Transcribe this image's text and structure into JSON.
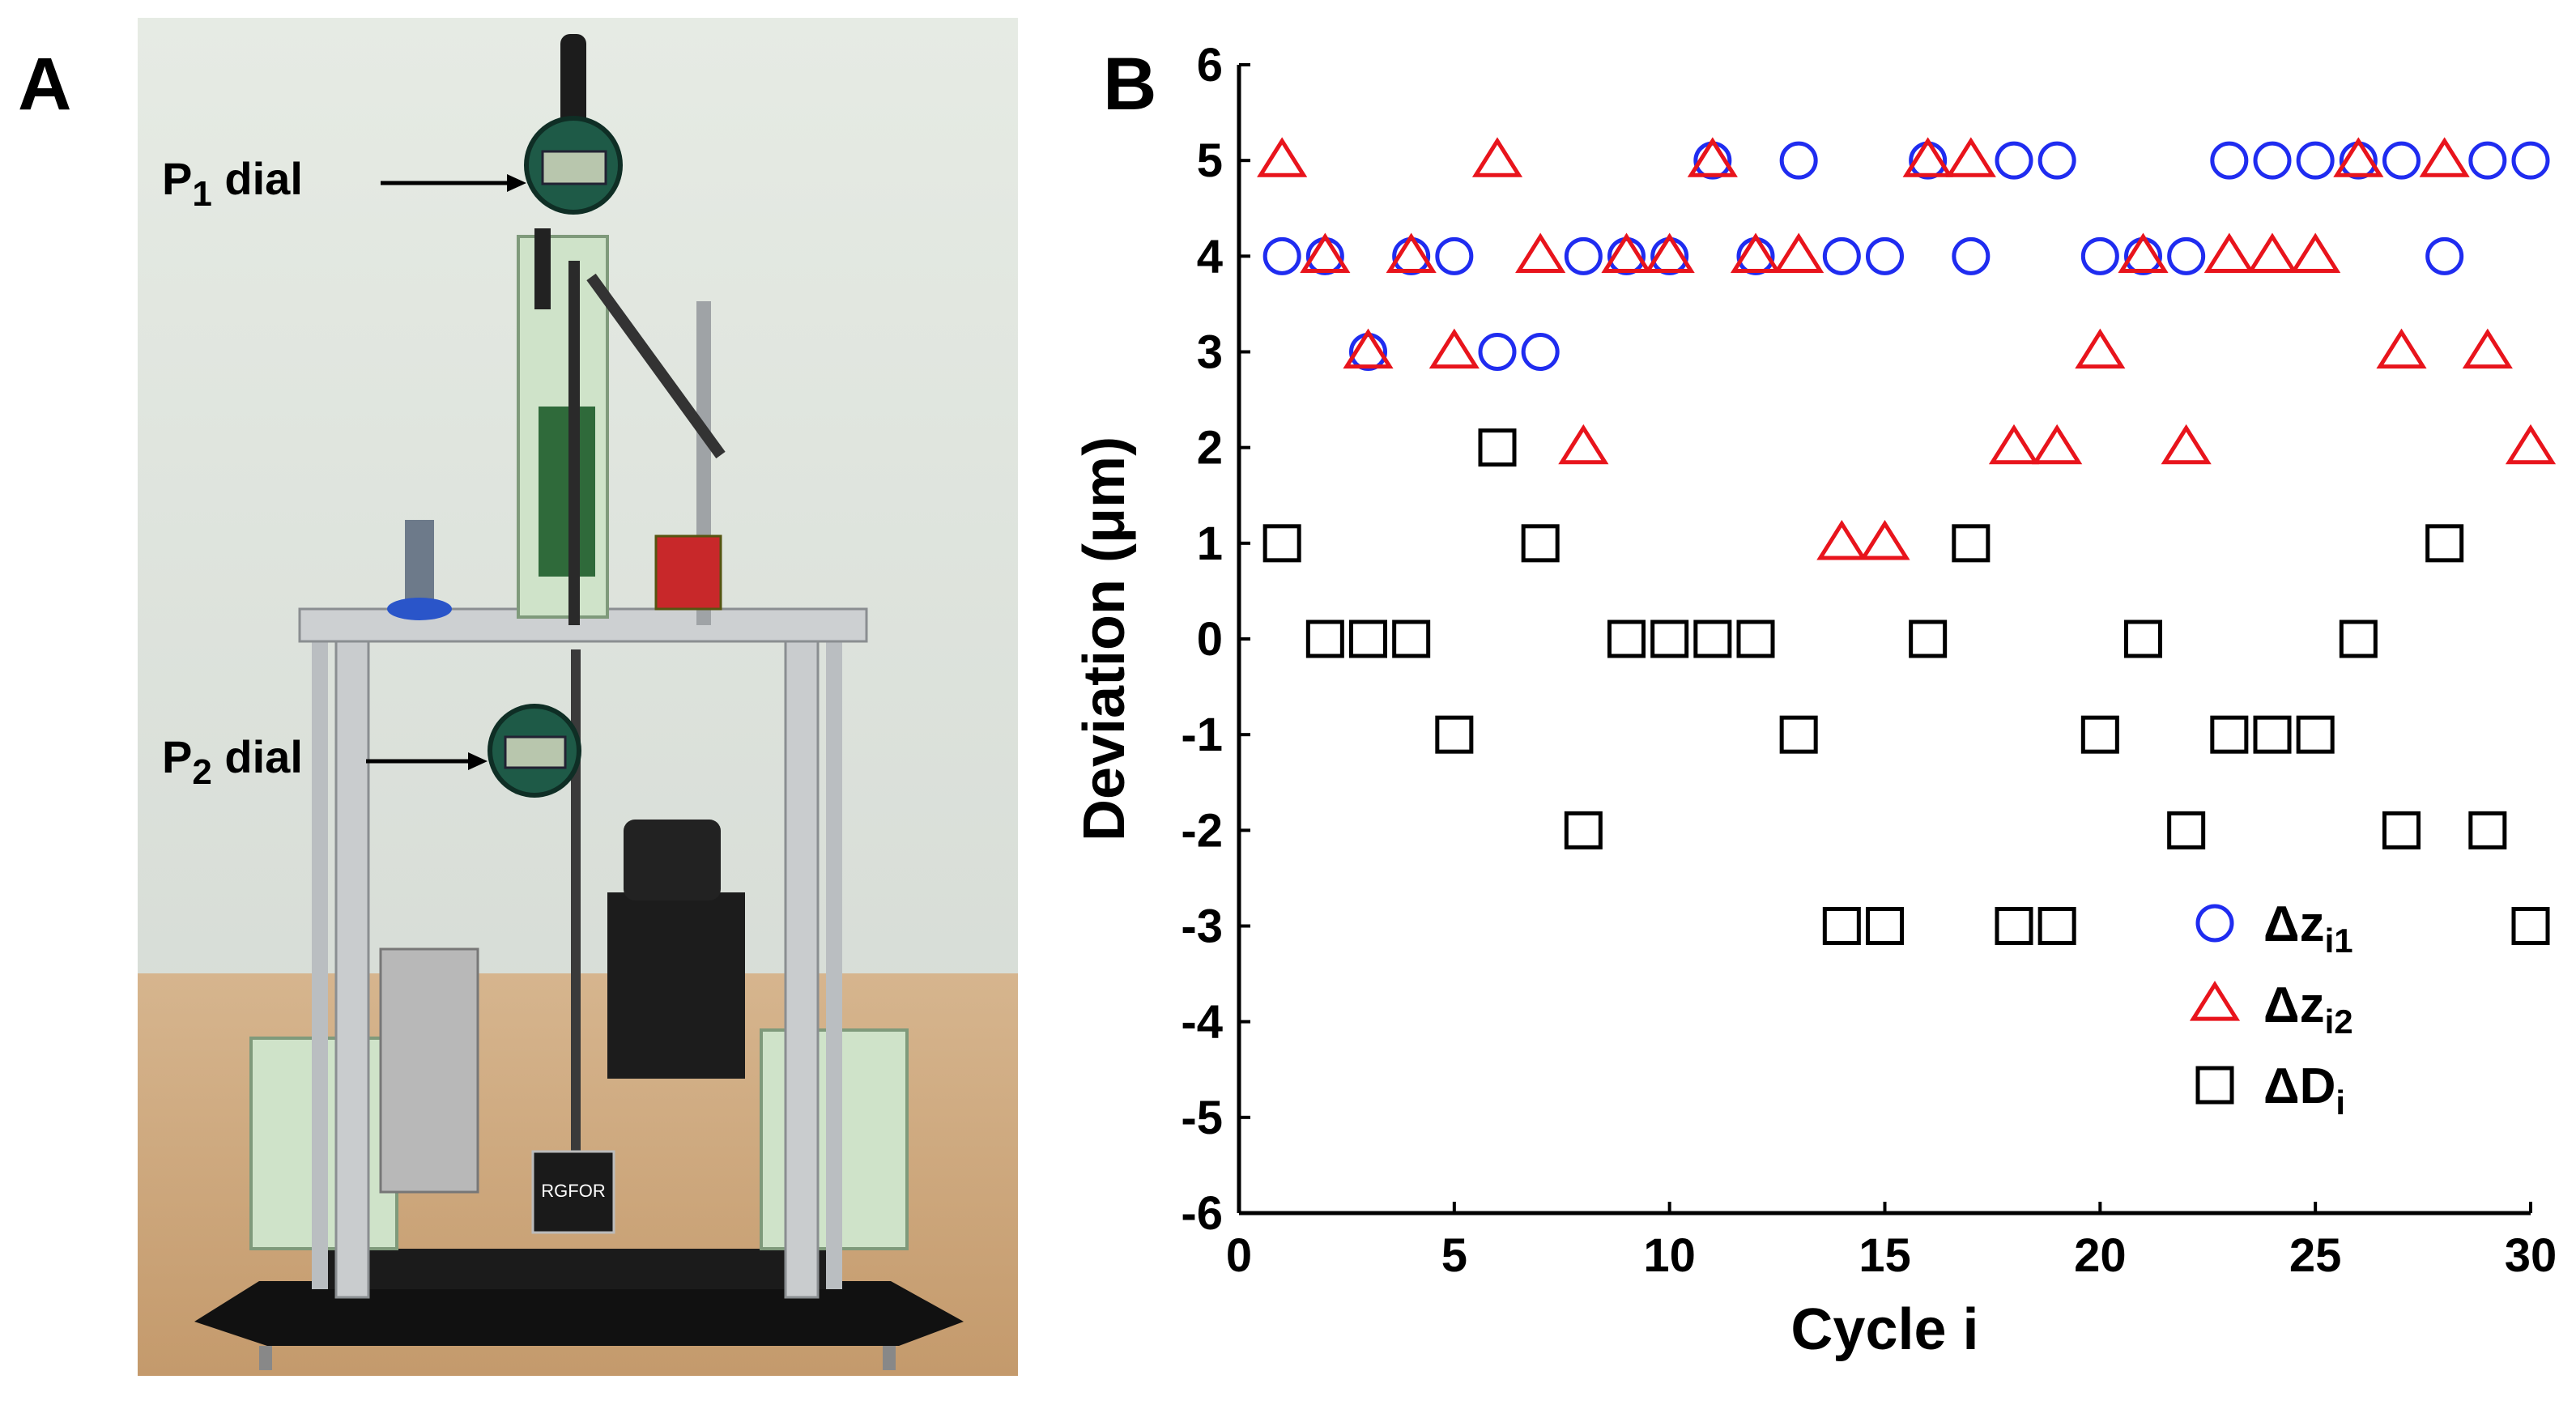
{
  "panels": {
    "a_label": "A",
    "b_label": "B"
  },
  "photo": {
    "p1_label_main": "P",
    "p1_label_sub": "1",
    "p1_label_rest": " dial",
    "p2_label_main": "P",
    "p2_label_sub": "2",
    "p2_label_rest": " dial",
    "mag_base_text": "RGFOR"
  },
  "chart_data": {
    "type": "scatter",
    "title": "",
    "xlabel": "Cycle i",
    "ylabel": "Deviation (μm)",
    "xlim": [
      0,
      30
    ],
    "ylim": [
      -6,
      6
    ],
    "xticks": [
      0,
      5,
      10,
      15,
      20,
      25,
      30
    ],
    "yticks": [
      -6,
      -5,
      -4,
      -3,
      -2,
      -1,
      0,
      1,
      2,
      3,
      4,
      5,
      6
    ],
    "grid": false,
    "legend_position": "bottom-right",
    "x": [
      1,
      2,
      3,
      4,
      5,
      6,
      7,
      8,
      9,
      10,
      11,
      12,
      13,
      14,
      15,
      16,
      17,
      18,
      19,
      20,
      21,
      22,
      23,
      24,
      25,
      26,
      27,
      28,
      29,
      30
    ],
    "series": [
      {
        "name": "Δz",
        "name_sub": "i1",
        "marker": "circle",
        "color": "#1f2cf0",
        "values": [
          4,
          4,
          3,
          4,
          4,
          3,
          3,
          4,
          4,
          4,
          5,
          4,
          5,
          4,
          4,
          5,
          4,
          5,
          5,
          4,
          4,
          4,
          5,
          5,
          5,
          5,
          5,
          4,
          5,
          5
        ]
      },
      {
        "name": "Δz",
        "name_sub": "i2",
        "marker": "triangle",
        "color": "#e8141c",
        "values": [
          5,
          4,
          3,
          4,
          3,
          5,
          4,
          2,
          4,
          4,
          5,
          4,
          4,
          1,
          1,
          5,
          5,
          2,
          2,
          3,
          4,
          2,
          4,
          4,
          4,
          5,
          3,
          5,
          3,
          2
        ]
      },
      {
        "name": "ΔD",
        "name_sub": "i",
        "marker": "square",
        "color": "#000000",
        "values": [
          1,
          0,
          0,
          0,
          -1,
          2,
          1,
          -2,
          0,
          0,
          0,
          0,
          -1,
          -3,
          -3,
          0,
          1,
          -3,
          -3,
          -1,
          0,
          -2,
          -1,
          -1,
          -1,
          0,
          -2,
          1,
          -2,
          -3
        ]
      }
    ]
  }
}
